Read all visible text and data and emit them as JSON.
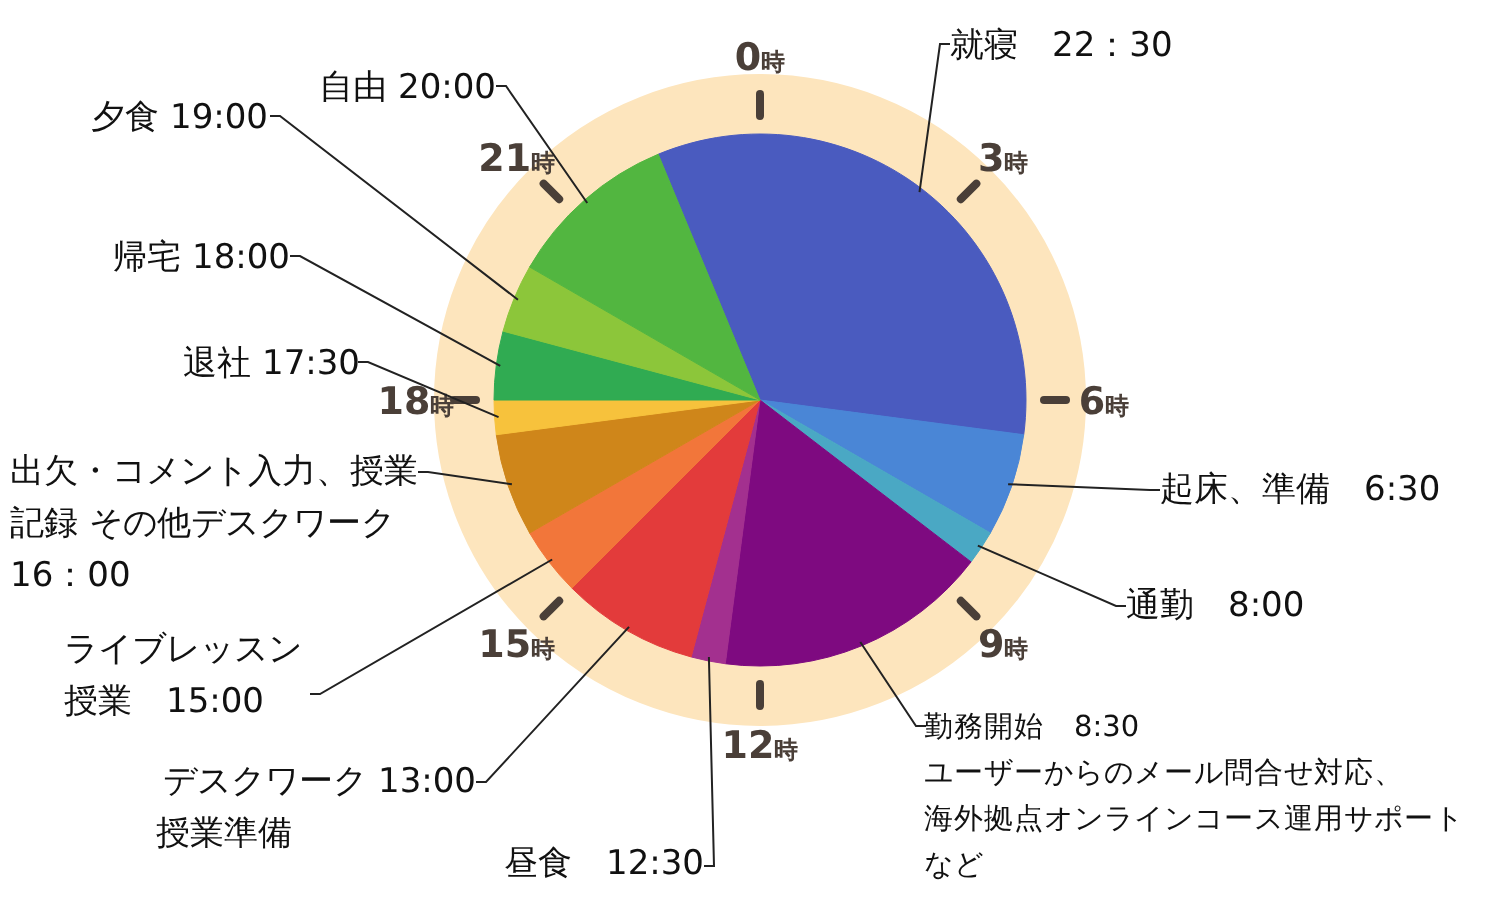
{
  "chart_data": {
    "type": "pie",
    "categories": [
      "就寝　22：30",
      "起床、準備　6:30",
      "通勤　8:00",
      "勤務開始　8:30ユーザーからのメール問合せ対応、海外拠点オンラインコース運用サポートなど",
      "昼食　12:30",
      "デスクワーク 13:00授業準備",
      "ライブレッスン授業　15:00",
      "出欠・コメント入力、授業記録 その他デスクワーク16：00",
      "退社 17:30",
      "帰宅 18:00",
      "夕食 19:00",
      "自由 20:00"
    ],
    "values": [
      33.333,
      6.25,
      2.083,
      16.667,
      2.083,
      8.333,
      4.167,
      6.25,
      2.083,
      4.167,
      4.167,
      10.417
    ],
    "colors": [
      "#4a5bbf",
      "#4a86d6",
      "#4aa8c4",
      "#7e0a80",
      "#a3308f",
      "#e33b3b",
      "#f2763a",
      "#cf861a",
      "#f7c23c",
      "#30ab52",
      "#8cc63a",
      "#52b640"
    ],
    "annotations": [
      "0時",
      "3時",
      "6時",
      "9時",
      "12時",
      "15時",
      "18時",
      "21時"
    ]
  }
}
